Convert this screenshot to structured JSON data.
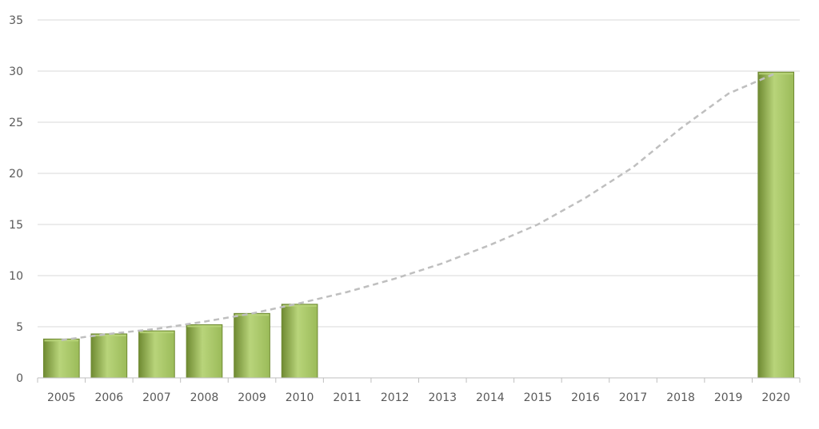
{
  "chart_data": {
    "type": "bar",
    "categories": [
      "2005",
      "2006",
      "2007",
      "2008",
      "2009",
      "2010",
      "2011",
      "2012",
      "2013",
      "2014",
      "2015",
      "2016",
      "2017",
      "2018",
      "2019",
      "2020"
    ],
    "series": [
      {
        "values": [
          3.8,
          4.3,
          4.6,
          5.2,
          6.3,
          7.2,
          null,
          null,
          null,
          null,
          null,
          null,
          null,
          null,
          null,
          29.9
        ]
      }
    ],
    "trendline": {
      "style": "dashed",
      "type": "exponential",
      "values": [
        3.7,
        4.3,
        4.8,
        5.5,
        6.3,
        7.3,
        8.4,
        9.7,
        11.2,
        13.0,
        15.0,
        17.6,
        20.6,
        24.4,
        27.8,
        29.8
      ]
    },
    "ylim": [
      0,
      35
    ],
    "yticks": [
      "0",
      "5",
      "10",
      "15",
      "20",
      "25",
      "30",
      "35"
    ],
    "grid": true,
    "title": "",
    "xlabel": "",
    "ylabel": "",
    "colors": {
      "bar_fill": "#9bbb59",
      "bar_highlight": "#b8d47a",
      "bar_edge": "#6f8a32",
      "trendline": "#bfbfbf",
      "gridline": "#d9d9d9",
      "axis": "#bfbfbf",
      "text": "#595959"
    }
  }
}
